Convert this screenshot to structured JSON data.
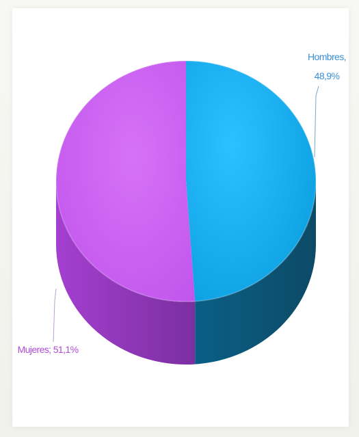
{
  "chart_data": {
    "type": "pie",
    "title": "",
    "categories": [
      "Hombres",
      "Mujeres"
    ],
    "values": [
      48.9,
      51.1
    ],
    "labels": [
      {
        "name_text": "Hombres,",
        "value_text": "48,9%"
      },
      {
        "name_text": "Mujeres; 51,1%",
        "value_text": ""
      }
    ],
    "colors": {
      "Hombres": "#14aef0",
      "Mujeres": "#c95ef0"
    },
    "style": "3d-cylinder",
    "legend": "none"
  }
}
